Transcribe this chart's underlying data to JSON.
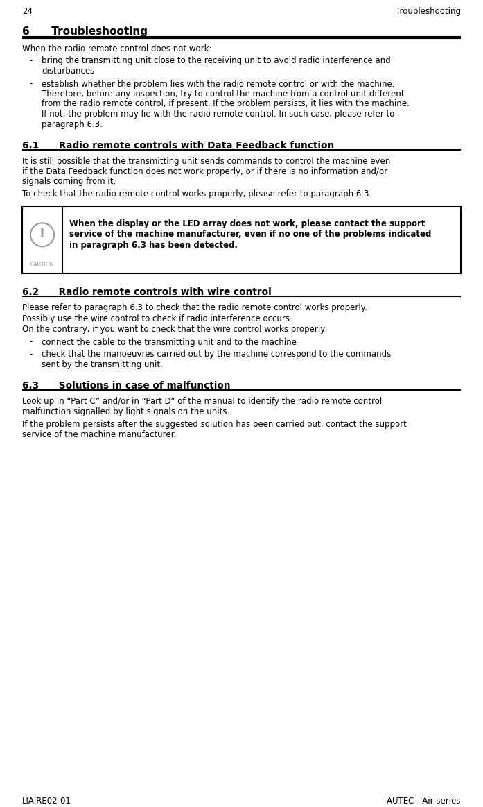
{
  "page_number": "24",
  "page_header_right": "Troubleshooting",
  "footer_left": "LIAIRE02-01",
  "footer_right": "AUTEC - Air series",
  "section_title": "6      Troubleshooting",
  "section_6_intro": "When the radio remote control does not work:",
  "section_6_bullet1_line1": "bring the transmitting unit close to the receiving unit to avoid radio interference and",
  "section_6_bullet1_line2": "disturbances",
  "section_6_bullet2_line1": "establish whether the problem lies with the radio remote control or with the machine.",
  "section_6_bullet2_line2": "Therefore, before any inspection, try to control the machine from a control unit different",
  "section_6_bullet2_line3": "from the radio remote control, if present. If the problem persists, it lies with the machine.",
  "section_6_bullet2_line4": "If not, the problem may lie with the radio remote control. In such case, please refer to",
  "section_6_bullet2_line5": "paragraph 6.3.",
  "section_61_title": "6.1      Radio remote controls with Data Feedback function",
  "section_61_p1_l1": "It is still possible that the transmitting unit sends commands to control the machine even",
  "section_61_p1_l2": "if the Data Feedback function does not work properly, or if there is no information and/or",
  "section_61_p1_l3": "signals coming from it.",
  "section_61_p2": "To check that the radio remote control works properly, please refer to paragraph 6.3.",
  "caution_line1": "When the display or the LED array does not work, please contact the support",
  "caution_line2": "service of the machine manufacturer, even if no one of the problems indicated",
  "caution_line3": "in paragraph 6.3 has been detected.",
  "section_62_title": "6.2      Radio remote controls with wire control",
  "section_62_p1": "Please refer to paragraph 6.3 to check that the radio remote control works properly.",
  "section_62_p2": "Possibly use the wire control to check if radio interference occurs.",
  "section_62_p3": "On the contrary, if you want to check that the wire control works properly:",
  "section_62_b1": "connect the cable to the transmitting unit and to the machine",
  "section_62_b2_l1": "check that the manoeuvres carried out by the machine correspond to the commands",
  "section_62_b2_l2": "sent by the transmitting unit.",
  "section_63_title": "6.3      Solutions in case of malfunction",
  "section_63_p1_l1": "Look up in “Part C” and/or in “Part D” of the manual to identify the radio remote control",
  "section_63_p1_l2": "malfunction signalled by light signals on the units.",
  "section_63_p2_l1": "If the problem persists after the suggested solution has been carried out, contact the support",
  "section_63_p2_l2": "service of the machine manufacturer.",
  "bg": "#ffffff",
  "fg": "#000000"
}
